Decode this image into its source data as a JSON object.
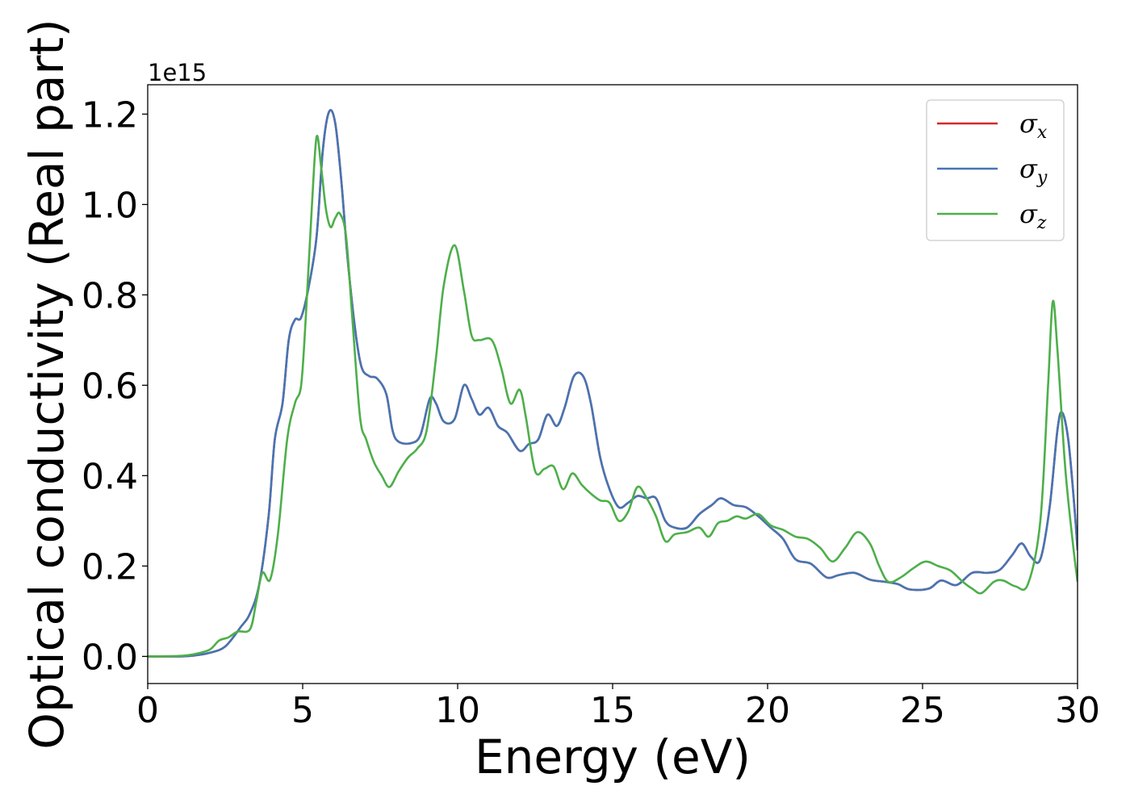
{
  "chart_data": {
    "type": "line",
    "xlabel": "Energy (eV)",
    "ylabel": "Optical conductivity (Real part)",
    "y_offset_text": "1e15",
    "xlim": [
      0,
      30
    ],
    "ylim": [
      -0.06,
      1.265
    ],
    "x_ticks": [
      0,
      5,
      10,
      15,
      20,
      25,
      30
    ],
    "x_tick_labels": [
      "0",
      "5",
      "10",
      "15",
      "20",
      "25",
      "30"
    ],
    "y_ticks": [
      0.0,
      0.2,
      0.4,
      0.6,
      0.8,
      1.0,
      1.2
    ],
    "y_tick_labels": [
      "0.0",
      "0.2",
      "0.4",
      "0.6",
      "0.8",
      "1.0",
      "1.2"
    ],
    "grid": false,
    "legend_position": "top-right",
    "series": [
      {
        "name": "σx",
        "legend_symbol": "σ",
        "legend_subscript": "x",
        "color": "#d62728",
        "points": [
          [
            0,
            0
          ],
          [
            1,
            0
          ],
          [
            1.5,
            0.002
          ],
          [
            2,
            0.008
          ],
          [
            2.5,
            0.022
          ],
          [
            3,
            0.065
          ],
          [
            3.3,
            0.095
          ],
          [
            3.6,
            0.16
          ],
          [
            3.9,
            0.31
          ],
          [
            4.1,
            0.48
          ],
          [
            4.35,
            0.56
          ],
          [
            4.55,
            0.7
          ],
          [
            4.75,
            0.745
          ],
          [
            4.95,
            0.75
          ],
          [
            5.2,
            0.82
          ],
          [
            5.45,
            0.93
          ],
          [
            5.65,
            1.12
          ],
          [
            5.85,
            1.205
          ],
          [
            6.05,
            1.18
          ],
          [
            6.25,
            1.05
          ],
          [
            6.45,
            0.88
          ],
          [
            6.7,
            0.72
          ],
          [
            6.9,
            0.64
          ],
          [
            7.15,
            0.62
          ],
          [
            7.4,
            0.615
          ],
          [
            7.7,
            0.58
          ],
          [
            7.9,
            0.5
          ],
          [
            8.1,
            0.475
          ],
          [
            8.5,
            0.472
          ],
          [
            8.8,
            0.49
          ],
          [
            9.1,
            0.57
          ],
          [
            9.3,
            0.56
          ],
          [
            9.55,
            0.52
          ],
          [
            9.9,
            0.525
          ],
          [
            10.2,
            0.6
          ],
          [
            10.45,
            0.57
          ],
          [
            10.7,
            0.535
          ],
          [
            11,
            0.55
          ],
          [
            11.3,
            0.51
          ],
          [
            11.6,
            0.495
          ],
          [
            12,
            0.455
          ],
          [
            12.3,
            0.47
          ],
          [
            12.6,
            0.48
          ],
          [
            12.9,
            0.535
          ],
          [
            13.2,
            0.51
          ],
          [
            13.45,
            0.55
          ],
          [
            13.75,
            0.62
          ],
          [
            14.05,
            0.62
          ],
          [
            14.3,
            0.56
          ],
          [
            14.6,
            0.44
          ],
          [
            14.9,
            0.37
          ],
          [
            15.2,
            0.33
          ],
          [
            15.5,
            0.34
          ],
          [
            15.8,
            0.355
          ],
          [
            16.1,
            0.35
          ],
          [
            16.4,
            0.35
          ],
          [
            16.7,
            0.3
          ],
          [
            17,
            0.285
          ],
          [
            17.4,
            0.285
          ],
          [
            17.8,
            0.315
          ],
          [
            18.2,
            0.335
          ],
          [
            18.5,
            0.35
          ],
          [
            18.9,
            0.335
          ],
          [
            19.3,
            0.33
          ],
          [
            19.7,
            0.31
          ],
          [
            20.1,
            0.285
          ],
          [
            20.5,
            0.26
          ],
          [
            20.9,
            0.215
          ],
          [
            21.4,
            0.205
          ],
          [
            21.9,
            0.175
          ],
          [
            22.3,
            0.18
          ],
          [
            22.8,
            0.185
          ],
          [
            23.3,
            0.17
          ],
          [
            23.8,
            0.165
          ],
          [
            24.2,
            0.16
          ],
          [
            24.6,
            0.148
          ],
          [
            25.2,
            0.15
          ],
          [
            25.6,
            0.168
          ],
          [
            26.1,
            0.158
          ],
          [
            26.6,
            0.185
          ],
          [
            27.1,
            0.185
          ],
          [
            27.5,
            0.192
          ],
          [
            27.9,
            0.225
          ],
          [
            28.2,
            0.25
          ],
          [
            28.5,
            0.22
          ],
          [
            28.8,
            0.215
          ],
          [
            29.1,
            0.33
          ],
          [
            29.35,
            0.5
          ],
          [
            29.5,
            0.54
          ],
          [
            29.7,
            0.48
          ],
          [
            29.9,
            0.33
          ],
          [
            30,
            0.235
          ]
        ]
      },
      {
        "name": "σy",
        "legend_symbol": "σ",
        "legend_subscript": "y",
        "color": "#4575b4",
        "points": [
          [
            0,
            0
          ],
          [
            1,
            0
          ],
          [
            1.5,
            0.002
          ],
          [
            2,
            0.008
          ],
          [
            2.5,
            0.022
          ],
          [
            3,
            0.065
          ],
          [
            3.3,
            0.095
          ],
          [
            3.6,
            0.16
          ],
          [
            3.9,
            0.31
          ],
          [
            4.1,
            0.48
          ],
          [
            4.35,
            0.56
          ],
          [
            4.55,
            0.7
          ],
          [
            4.75,
            0.745
          ],
          [
            4.95,
            0.75
          ],
          [
            5.2,
            0.82
          ],
          [
            5.45,
            0.93
          ],
          [
            5.65,
            1.12
          ],
          [
            5.85,
            1.205
          ],
          [
            6.05,
            1.18
          ],
          [
            6.25,
            1.05
          ],
          [
            6.45,
            0.88
          ],
          [
            6.7,
            0.72
          ],
          [
            6.9,
            0.64
          ],
          [
            7.15,
            0.62
          ],
          [
            7.4,
            0.615
          ],
          [
            7.7,
            0.58
          ],
          [
            7.9,
            0.5
          ],
          [
            8.1,
            0.475
          ],
          [
            8.5,
            0.472
          ],
          [
            8.8,
            0.49
          ],
          [
            9.1,
            0.57
          ],
          [
            9.3,
            0.56
          ],
          [
            9.55,
            0.52
          ],
          [
            9.9,
            0.525
          ],
          [
            10.2,
            0.6
          ],
          [
            10.45,
            0.57
          ],
          [
            10.7,
            0.535
          ],
          [
            11,
            0.55
          ],
          [
            11.3,
            0.51
          ],
          [
            11.6,
            0.495
          ],
          [
            12,
            0.455
          ],
          [
            12.3,
            0.47
          ],
          [
            12.6,
            0.48
          ],
          [
            12.9,
            0.535
          ],
          [
            13.2,
            0.51
          ],
          [
            13.45,
            0.55
          ],
          [
            13.75,
            0.62
          ],
          [
            14.05,
            0.62
          ],
          [
            14.3,
            0.56
          ],
          [
            14.6,
            0.44
          ],
          [
            14.9,
            0.37
          ],
          [
            15.2,
            0.33
          ],
          [
            15.5,
            0.34
          ],
          [
            15.8,
            0.355
          ],
          [
            16.1,
            0.35
          ],
          [
            16.4,
            0.35
          ],
          [
            16.7,
            0.3
          ],
          [
            17,
            0.285
          ],
          [
            17.4,
            0.285
          ],
          [
            17.8,
            0.315
          ],
          [
            18.2,
            0.335
          ],
          [
            18.5,
            0.35
          ],
          [
            18.9,
            0.335
          ],
          [
            19.3,
            0.33
          ],
          [
            19.7,
            0.31
          ],
          [
            20.1,
            0.285
          ],
          [
            20.5,
            0.26
          ],
          [
            20.9,
            0.215
          ],
          [
            21.4,
            0.205
          ],
          [
            21.9,
            0.175
          ],
          [
            22.3,
            0.18
          ],
          [
            22.8,
            0.185
          ],
          [
            23.3,
            0.17
          ],
          [
            23.8,
            0.165
          ],
          [
            24.2,
            0.16
          ],
          [
            24.6,
            0.148
          ],
          [
            25.2,
            0.15
          ],
          [
            25.6,
            0.168
          ],
          [
            26.1,
            0.158
          ],
          [
            26.6,
            0.185
          ],
          [
            27.1,
            0.185
          ],
          [
            27.5,
            0.192
          ],
          [
            27.9,
            0.225
          ],
          [
            28.2,
            0.25
          ],
          [
            28.5,
            0.22
          ],
          [
            28.8,
            0.215
          ],
          [
            29.1,
            0.33
          ],
          [
            29.35,
            0.5
          ],
          [
            29.5,
            0.54
          ],
          [
            29.7,
            0.48
          ],
          [
            29.9,
            0.33
          ],
          [
            30,
            0.235
          ]
        ]
      },
      {
        "name": "σz",
        "legend_symbol": "σ",
        "legend_subscript": "z",
        "color": "#4daf4a",
        "points": [
          [
            0,
            0
          ],
          [
            1,
            0.001
          ],
          [
            1.5,
            0.005
          ],
          [
            2,
            0.015
          ],
          [
            2.3,
            0.035
          ],
          [
            2.6,
            0.042
          ],
          [
            2.9,
            0.055
          ],
          [
            3.3,
            0.06
          ],
          [
            3.5,
            0.12
          ],
          [
            3.7,
            0.185
          ],
          [
            3.95,
            0.17
          ],
          [
            4.2,
            0.27
          ],
          [
            4.5,
            0.48
          ],
          [
            4.75,
            0.56
          ],
          [
            4.95,
            0.6
          ],
          [
            5.1,
            0.75
          ],
          [
            5.3,
            1.0
          ],
          [
            5.45,
            1.15
          ],
          [
            5.6,
            1.08
          ],
          [
            5.75,
            0.99
          ],
          [
            5.9,
            0.95
          ],
          [
            6.05,
            0.97
          ],
          [
            6.2,
            0.98
          ],
          [
            6.4,
            0.93
          ],
          [
            6.6,
            0.75
          ],
          [
            6.85,
            0.53
          ],
          [
            7.05,
            0.48
          ],
          [
            7.3,
            0.43
          ],
          [
            7.55,
            0.4
          ],
          [
            7.8,
            0.375
          ],
          [
            8.1,
            0.41
          ],
          [
            8.4,
            0.44
          ],
          [
            8.7,
            0.46
          ],
          [
            9.0,
            0.5
          ],
          [
            9.3,
            0.66
          ],
          [
            9.55,
            0.82
          ],
          [
            9.9,
            0.91
          ],
          [
            10.2,
            0.81
          ],
          [
            10.45,
            0.71
          ],
          [
            10.7,
            0.7
          ],
          [
            11.1,
            0.7
          ],
          [
            11.4,
            0.64
          ],
          [
            11.7,
            0.56
          ],
          [
            12.0,
            0.59
          ],
          [
            12.2,
            0.53
          ],
          [
            12.5,
            0.41
          ],
          [
            12.8,
            0.415
          ],
          [
            13.1,
            0.42
          ],
          [
            13.4,
            0.37
          ],
          [
            13.7,
            0.405
          ],
          [
            14.0,
            0.38
          ],
          [
            14.3,
            0.36
          ],
          [
            14.6,
            0.345
          ],
          [
            14.9,
            0.34
          ],
          [
            15.2,
            0.3
          ],
          [
            15.5,
            0.32
          ],
          [
            15.8,
            0.375
          ],
          [
            16.1,
            0.35
          ],
          [
            16.4,
            0.31
          ],
          [
            16.7,
            0.255
          ],
          [
            17.0,
            0.27
          ],
          [
            17.4,
            0.275
          ],
          [
            17.8,
            0.285
          ],
          [
            18.1,
            0.265
          ],
          [
            18.4,
            0.295
          ],
          [
            18.7,
            0.3
          ],
          [
            19.0,
            0.31
          ],
          [
            19.3,
            0.305
          ],
          [
            19.7,
            0.315
          ],
          [
            20.1,
            0.29
          ],
          [
            20.5,
            0.28
          ],
          [
            20.9,
            0.265
          ],
          [
            21.3,
            0.26
          ],
          [
            21.7,
            0.24
          ],
          [
            22.1,
            0.21
          ],
          [
            22.5,
            0.24
          ],
          [
            22.9,
            0.275
          ],
          [
            23.3,
            0.25
          ],
          [
            23.6,
            0.2
          ],
          [
            23.9,
            0.165
          ],
          [
            24.3,
            0.175
          ],
          [
            24.7,
            0.195
          ],
          [
            25.1,
            0.21
          ],
          [
            25.5,
            0.2
          ],
          [
            25.9,
            0.19
          ],
          [
            26.3,
            0.165
          ],
          [
            26.6,
            0.15
          ],
          [
            26.9,
            0.14
          ],
          [
            27.3,
            0.165
          ],
          [
            27.6,
            0.168
          ],
          [
            28.0,
            0.155
          ],
          [
            28.4,
            0.16
          ],
          [
            28.8,
            0.3
          ],
          [
            29.05,
            0.6
          ],
          [
            29.2,
            0.785
          ],
          [
            29.35,
            0.68
          ],
          [
            29.6,
            0.42
          ],
          [
            29.85,
            0.25
          ],
          [
            30,
            0.165
          ]
        ]
      }
    ]
  }
}
